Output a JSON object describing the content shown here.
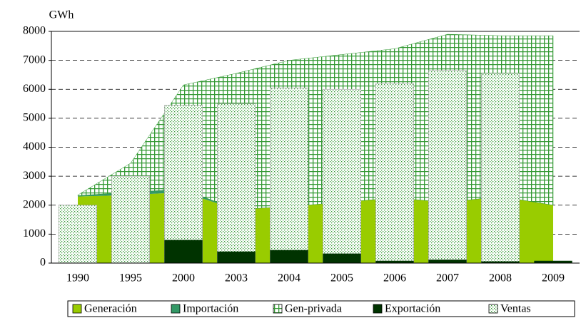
{
  "chart_data": {
    "type": "bar",
    "y_label": "GWh",
    "categories": [
      "1990",
      "1995",
      "2000",
      "2003",
      "2004",
      "2005",
      "2006",
      "2007",
      "2008",
      "2009"
    ],
    "series": [
      {
        "name": "Generación",
        "type": "area",
        "color": "#99cc00",
        "values": [
          2300,
          2350,
          2450,
          1850,
          1950,
          2100,
          2250,
          2100,
          2300,
          2000
        ]
      },
      {
        "name": "Importación",
        "type": "area",
        "color": "#339966",
        "values": [
          30,
          100,
          100,
          0,
          0,
          0,
          0,
          0,
          0,
          0
        ]
      },
      {
        "name": "Gen-privada",
        "type": "area",
        "color": "#339933",
        "pattern": "grid",
        "values": [
          20,
          1000,
          3600,
          4700,
          5050,
          5100,
          5150,
          5800,
          5550,
          5850
        ]
      },
      {
        "name": "Exportación",
        "type": "bar",
        "color": "#003300",
        "values": [
          0,
          0,
          800,
          400,
          450,
          330,
          80,
          120,
          60,
          80
        ]
      },
      {
        "name": "Ventas",
        "type": "bar",
        "color": "#339933",
        "pattern": "dots",
        "values": [
          2000,
          3000,
          5450,
          5500,
          6050,
          6000,
          6200,
          6650,
          6550,
          null
        ]
      }
    ],
    "ylim": [
      0,
      8000
    ],
    "yticks": [
      0,
      1000,
      2000,
      3000,
      4000,
      5000,
      6000,
      7000,
      8000
    ],
    "grid": true
  }
}
